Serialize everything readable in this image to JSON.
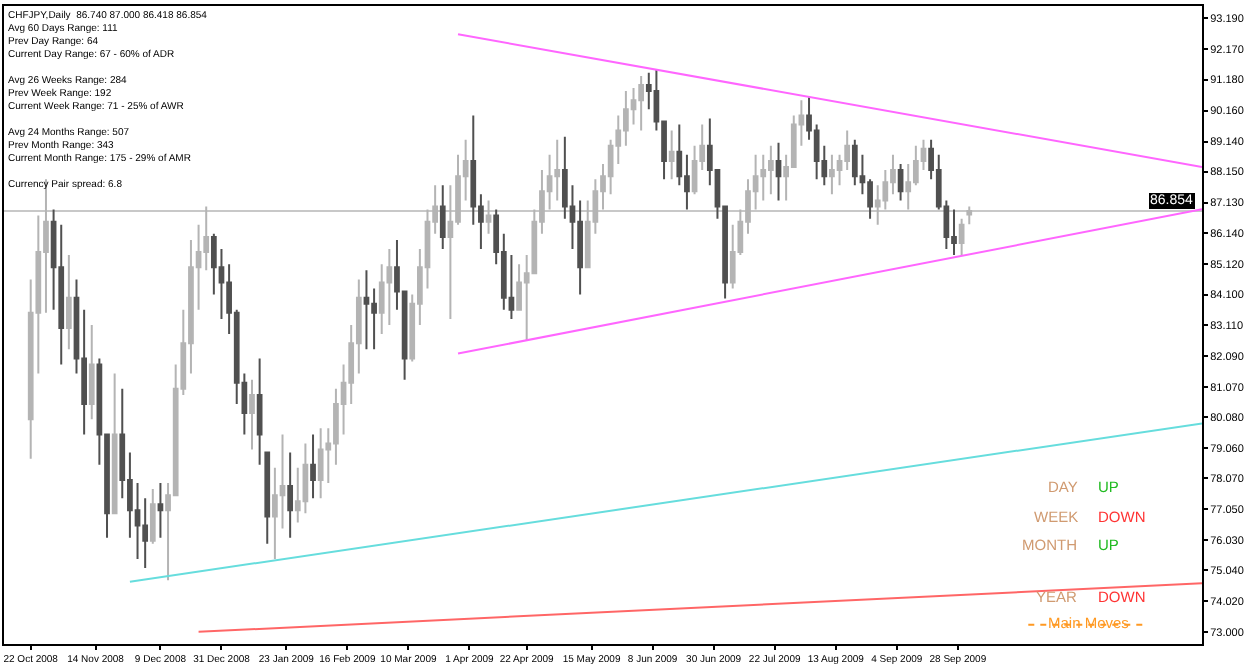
{
  "chart_data": {
    "type": "candlestick",
    "annotations": [
      "CHFJPY,Daily  86.740 87.000 86.418 86.854\nAvg 60 Days Range: 111\nPrev Day Range: 64\nCurrent Day Range: 67 - 60% of ADR\n\nAvg 26 Weeks Range: 284\nPrev Week Range: 192\nCurrent Week Range: 71 - 25% of AWR\n\nAvg 24 Months Range: 507\nPrev Month Range: 343\nCurrent Month Range: 175 - 29% of AMR\n\nCurrency Pair spread: 6.8",
      "DAY",
      "UP",
      "WEEK",
      "DOWN",
      "MONTH",
      "UP",
      "YEAR",
      "DOWN",
      "Main Moves"
    ],
    "x": [
      "2008-10-22",
      "2008-10-24",
      "2008-10-28",
      "2008-10-30",
      "2008-11-03",
      "2008-11-05",
      "2008-11-07",
      "2008-11-11",
      "2008-11-13",
      "2008-11-17",
      "2008-11-19",
      "2008-11-21",
      "2008-11-25",
      "2008-11-27",
      "2008-12-01",
      "2008-12-03",
      "2008-12-05",
      "2008-12-09",
      "2008-12-11",
      "2008-12-15",
      "2008-12-17",
      "2008-12-19",
      "2008-12-23",
      "2008-12-25",
      "2008-12-29",
      "2008-12-31",
      "2009-01-02",
      "2009-01-06",
      "2009-01-08",
      "2009-01-12",
      "2009-01-14",
      "2009-01-16",
      "2009-01-20",
      "2009-01-22",
      "2009-01-26",
      "2009-01-28",
      "2009-01-30",
      "2009-02-03",
      "2009-02-05",
      "2009-02-09",
      "2009-02-11",
      "2009-02-13",
      "2009-02-17",
      "2009-02-19",
      "2009-02-23",
      "2009-02-25",
      "2009-02-27",
      "2009-03-03",
      "2009-03-05",
      "2009-03-09",
      "2009-03-11",
      "2009-03-13",
      "2009-03-17",
      "2009-03-19",
      "2009-03-23",
      "2009-03-25",
      "2009-03-27",
      "2009-03-31",
      "2009-04-02",
      "2009-04-06",
      "2009-04-08",
      "2009-04-10",
      "2009-04-14",
      "2009-04-16",
      "2009-04-20",
      "2009-04-22",
      "2009-04-24",
      "2009-04-28",
      "2009-04-30",
      "2009-05-04",
      "2009-05-06",
      "2009-05-08",
      "2009-05-12",
      "2009-05-14",
      "2009-05-18",
      "2009-05-20",
      "2009-05-22",
      "2009-05-26",
      "2009-05-28",
      "2009-06-01",
      "2009-06-03",
      "2009-06-05",
      "2009-06-09",
      "2009-06-11",
      "2009-06-15",
      "2009-06-17",
      "2009-06-19",
      "2009-06-23",
      "2009-06-25",
      "2009-06-29",
      "2009-07-01",
      "2009-07-03",
      "2009-07-07",
      "2009-07-09",
      "2009-07-13",
      "2009-07-15",
      "2009-07-17",
      "2009-07-21",
      "2009-07-23",
      "2009-07-27",
      "2009-07-29",
      "2009-07-31",
      "2009-08-04",
      "2009-08-06",
      "2009-08-10",
      "2009-08-12",
      "2009-08-14",
      "2009-08-18",
      "2009-08-20",
      "2009-08-24",
      "2009-08-26",
      "2009-08-28",
      "2009-09-01",
      "2009-09-03",
      "2009-09-07",
      "2009-09-09",
      "2009-09-11",
      "2009-09-15",
      "2009-09-17",
      "2009-09-21",
      "2009-09-23",
      "2009-09-25",
      "2009-09-29",
      "2009-10-01"
    ],
    "ohlc": [
      [
        80.0,
        84.6,
        78.7,
        83.5
      ],
      [
        83.5,
        86.7,
        81.5,
        85.5
      ],
      [
        85.5,
        87.9,
        83.5,
        86.5
      ],
      [
        86.5,
        86.9,
        83.6,
        85.0
      ],
      [
        85.0,
        86.4,
        81.8,
        83.0
      ],
      [
        83.0,
        85.4,
        82.3,
        84.0
      ],
      [
        84.0,
        84.6,
        81.5,
        82.0
      ],
      [
        82.0,
        83.6,
        79.5,
        80.5
      ],
      [
        80.5,
        83.1,
        80.0,
        81.8
      ],
      [
        81.8,
        82.0,
        78.5,
        79.5
      ],
      [
        79.5,
        79.5,
        76.1,
        76.9
      ],
      [
        76.9,
        81.5,
        76.9,
        79.5
      ],
      [
        79.5,
        81.0,
        77.4,
        78.0
      ],
      [
        78.0,
        78.9,
        76.1,
        77.0
      ],
      [
        77.0,
        77.9,
        75.4,
        76.5
      ],
      [
        76.5,
        77.4,
        75.1,
        76.0
      ],
      [
        76.0,
        77.7,
        75.9,
        77.2
      ],
      [
        77.2,
        77.9,
        76.1,
        77.0
      ],
      [
        77.0,
        77.9,
        74.7,
        77.5
      ],
      [
        77.5,
        81.8,
        77.5,
        81.0
      ],
      [
        81.0,
        83.6,
        80.8,
        82.5
      ],
      [
        82.5,
        85.9,
        81.5,
        85.0
      ],
      [
        85.0,
        86.4,
        83.6,
        85.5
      ],
      [
        85.5,
        87.0,
        84.9,
        86.0
      ],
      [
        86.0,
        86.1,
        84.1,
        85.0
      ],
      [
        85.0,
        85.6,
        83.3,
        84.5
      ],
      [
        84.5,
        85.1,
        82.8,
        83.5
      ],
      [
        83.5,
        83.6,
        80.5,
        81.2
      ],
      [
        81.2,
        81.5,
        79.5,
        80.2
      ],
      [
        80.2,
        81.3,
        79.0,
        80.8
      ],
      [
        80.8,
        82.0,
        78.5,
        79.5
      ],
      [
        78.9,
        78.9,
        75.9,
        76.8
      ],
      [
        76.8,
        78.4,
        75.4,
        77.5
      ],
      [
        77.5,
        79.5,
        76.4,
        77.8
      ],
      [
        77.8,
        78.9,
        76.1,
        77.0
      ],
      [
        77.0,
        78.4,
        76.6,
        77.3
      ],
      [
        77.3,
        79.2,
        76.9,
        78.5
      ],
      [
        78.5,
        79.5,
        77.4,
        78.0
      ],
      [
        78.0,
        79.7,
        77.4,
        79.0
      ],
      [
        79.0,
        79.7,
        77.9,
        79.2
      ],
      [
        79.2,
        81.0,
        78.5,
        80.5
      ],
      [
        80.5,
        81.8,
        79.5,
        81.2
      ],
      [
        81.2,
        83.1,
        80.5,
        82.5
      ],
      [
        82.5,
        84.6,
        81.5,
        84.0
      ],
      [
        84.0,
        84.9,
        82.3,
        83.8
      ],
      [
        83.8,
        84.3,
        82.3,
        83.5
      ],
      [
        83.5,
        85.1,
        82.8,
        84.5
      ],
      [
        84.5,
        85.6,
        83.1,
        85.0
      ],
      [
        85.0,
        85.9,
        83.6,
        84.2
      ],
      [
        84.2,
        84.2,
        81.3,
        82.0
      ],
      [
        82.0,
        84.1,
        81.9,
        83.8
      ],
      [
        83.8,
        85.6,
        83.1,
        85.0
      ],
      [
        85.0,
        86.9,
        84.3,
        86.5
      ],
      [
        86.5,
        87.7,
        86.1,
        87.0
      ],
      [
        87.0,
        87.7,
        85.6,
        86.0
      ],
      [
        86.0,
        87.7,
        83.3,
        86.5
      ],
      [
        86.5,
        88.7,
        86.4,
        88.0
      ],
      [
        88.0,
        89.2,
        87.2,
        88.5
      ],
      [
        88.5,
        90.0,
        86.4,
        87.0
      ],
      [
        87.0,
        87.4,
        85.6,
        86.5
      ],
      [
        86.5,
        87.2,
        86.1,
        86.7
      ],
      [
        86.7,
        86.9,
        85.1,
        85.5
      ],
      [
        85.5,
        86.1,
        83.6,
        84.0
      ],
      [
        84.0,
        85.4,
        83.3,
        83.6
      ],
      [
        83.6,
        85.1,
        83.6,
        84.5
      ],
      [
        84.5,
        85.4,
        82.6,
        84.8
      ],
      [
        84.8,
        86.9,
        84.8,
        86.5
      ],
      [
        86.5,
        88.2,
        86.1,
        87.5
      ],
      [
        87.5,
        88.7,
        86.9,
        88.0
      ],
      [
        88.0,
        89.2,
        87.2,
        88.2
      ],
      [
        88.2,
        89.3,
        86.6,
        87.0
      ],
      [
        87.0,
        87.7,
        85.6,
        86.5
      ],
      [
        86.5,
        87.2,
        84.1,
        85.0
      ],
      [
        85.0,
        87.2,
        85.0,
        86.5
      ],
      [
        86.5,
        87.9,
        86.1,
        87.5
      ],
      [
        87.5,
        88.4,
        86.9,
        88.0
      ],
      [
        88.0,
        89.2,
        87.4,
        89.0
      ],
      [
        89.0,
        90.0,
        88.4,
        89.5
      ],
      [
        89.5,
        90.8,
        89.0,
        90.2
      ],
      [
        90.2,
        90.9,
        89.7,
        90.5
      ],
      [
        90.5,
        91.3,
        89.5,
        91.0
      ],
      [
        91.0,
        91.4,
        90.2,
        90.8
      ],
      [
        90.8,
        91.5,
        89.5,
        89.8
      ],
      [
        89.8,
        89.8,
        87.9,
        88.5
      ],
      [
        88.5,
        89.5,
        87.9,
        88.8
      ],
      [
        88.8,
        89.7,
        87.7,
        88.0
      ],
      [
        88.0,
        88.7,
        86.9,
        87.5
      ],
      [
        87.5,
        89.0,
        87.4,
        88.5
      ],
      [
        88.5,
        89.7,
        88.2,
        89.0
      ],
      [
        89.0,
        89.9,
        87.7,
        88.2
      ],
      [
        88.2,
        88.2,
        86.6,
        87.0
      ],
      [
        87.0,
        87.0,
        83.97,
        84.5
      ],
      [
        84.5,
        86.4,
        84.3,
        85.5
      ],
      [
        85.5,
        86.9,
        85.4,
        86.5
      ],
      [
        86.5,
        87.9,
        86.1,
        87.5
      ],
      [
        87.5,
        88.7,
        86.9,
        88.0
      ],
      [
        88.0,
        88.7,
        87.2,
        88.2
      ],
      [
        88.2,
        89.0,
        87.4,
        88.5
      ],
      [
        88.5,
        89.1,
        87.2,
        88.0
      ],
      [
        88.0,
        88.7,
        87.2,
        88.3
      ],
      [
        88.3,
        90.0,
        88.3,
        89.7
      ],
      [
        89.7,
        90.5,
        89.0,
        90.0
      ],
      [
        90.0,
        90.6,
        89.2,
        89.5
      ],
      [
        89.5,
        89.7,
        87.9,
        88.5
      ],
      [
        88.5,
        89.0,
        87.7,
        88.0
      ],
      [
        88.0,
        88.7,
        87.4,
        88.2
      ],
      [
        88.2,
        88.7,
        87.7,
        88.5
      ],
      [
        88.5,
        89.5,
        88.2,
        89.0
      ],
      [
        89.0,
        89.2,
        87.7,
        88.0
      ],
      [
        88.0,
        88.7,
        87.4,
        87.8
      ],
      [
        87.8,
        87.9,
        86.6,
        87.0
      ],
      [
        87.0,
        87.7,
        86.4,
        87.2
      ],
      [
        87.2,
        88.2,
        86.9,
        87.8
      ],
      [
        87.8,
        88.7,
        87.4,
        88.2
      ],
      [
        88.2,
        88.4,
        87.2,
        87.5
      ],
      [
        87.5,
        88.4,
        86.9,
        87.8
      ],
      [
        87.8,
        89.0,
        87.7,
        88.5
      ],
      [
        88.5,
        89.2,
        88.2,
        88.9
      ],
      [
        88.9,
        89.2,
        87.9,
        88.2
      ],
      [
        88.2,
        88.7,
        86.9,
        87.0
      ],
      [
        87.0,
        87.2,
        85.6,
        86.0
      ],
      [
        86.0,
        86.9,
        85.4,
        85.8
      ],
      [
        85.8,
        86.6,
        85.4,
        86.4
      ],
      [
        86.74,
        87.0,
        86.418,
        86.854
      ]
    ],
    "series": [
      {
        "type": "line",
        "color": "#ff66ff",
        "x": [
          "2009-03-27",
          "2009-12-25"
        ],
        "values": [
          92.67,
          88.3
        ]
      },
      {
        "type": "line",
        "color": "#ff66ff",
        "x": [
          "2009-03-27",
          "2009-12-25"
        ],
        "values": [
          82.16,
          86.91
        ]
      },
      {
        "type": "line",
        "color": "#66dddd",
        "x": [
          "2008-11-27",
          "2009-12-25"
        ],
        "values": [
          74.65,
          79.86
        ]
      },
      {
        "type": "line",
        "color": "#ff6666",
        "x": [
          "2008-12-23",
          "2009-12-25"
        ],
        "values": [
          73.0,
          74.6
        ]
      }
    ],
    "ref_lines": [
      {
        "axis": "y",
        "value": 86.854,
        "label": "86.854",
        "color": "#c8c8c8"
      }
    ],
    "xlim": [
      "2008-10-13",
      "2009-12-25"
    ],
    "xticks": [
      {
        "value": "2008-10-22",
        "label": "22 Oct 2008"
      },
      {
        "value": "2008-11-14",
        "label": "14 Nov 2008"
      },
      {
        "value": "2008-12-09",
        "label": "9 Dec 2008"
      },
      {
        "value": "2008-12-31",
        "label": "31 Dec 2008"
      },
      {
        "value": "2009-01-23",
        "label": "23 Jan 2009"
      },
      {
        "value": "2009-02-16",
        "label": "16 Feb 2009"
      },
      {
        "value": "2009-03-10",
        "label": "10 Mar 2009"
      },
      {
        "value": "2009-04-01",
        "label": "1 Apr 2009"
      },
      {
        "value": "2009-04-22",
        "label": "22 Apr 2009"
      },
      {
        "value": "2009-05-15",
        "label": "15 May 2009"
      },
      {
        "value": "2009-06-08",
        "label": "8 Jun 2009"
      },
      {
        "value": "2009-06-30",
        "label": "30 Jun 2009"
      },
      {
        "value": "2009-07-22",
        "label": "22 Jul 2009"
      },
      {
        "value": "2009-08-13",
        "label": "13 Aug 2009"
      },
      {
        "value": "2009-09-04",
        "label": "4 Sep 2009"
      },
      {
        "value": "2009-09-28",
        "label": "28 Sep 2009"
      }
    ],
    "ylim": [
      72.6,
      93.6
    ],
    "yticks": [
      {
        "value": 73.0,
        "label": "73.000"
      },
      {
        "value": 74.02,
        "label": "74.020"
      },
      {
        "value": 75.04,
        "label": "75.040"
      },
      {
        "value": 76.03,
        "label": "76.030"
      },
      {
        "value": 77.05,
        "label": "77.050"
      },
      {
        "value": 78.07,
        "label": "78.070"
      },
      {
        "value": 79.06,
        "label": "79.060"
      },
      {
        "value": 80.08,
        "label": "80.080"
      },
      {
        "value": 81.07,
        "label": "81.070"
      },
      {
        "value": 82.09,
        "label": "82.090"
      },
      {
        "value": 83.11,
        "label": "83.110"
      },
      {
        "value": 84.1,
        "label": "84.100"
      },
      {
        "value": 85.12,
        "label": "85.120"
      },
      {
        "value": 86.14,
        "label": "86.140"
      },
      {
        "value": 87.13,
        "label": "87.130"
      },
      {
        "value": 88.15,
        "label": "88.150"
      },
      {
        "value": 89.14,
        "label": "89.140"
      },
      {
        "value": 90.16,
        "label": "90.160"
      },
      {
        "value": 91.18,
        "label": "91.180"
      },
      {
        "value": 92.17,
        "label": "92.170"
      },
      {
        "value": 93.19,
        "label": "93.190"
      }
    ],
    "grid": false,
    "marker": "none",
    "line_style": "solid"
  }
}
